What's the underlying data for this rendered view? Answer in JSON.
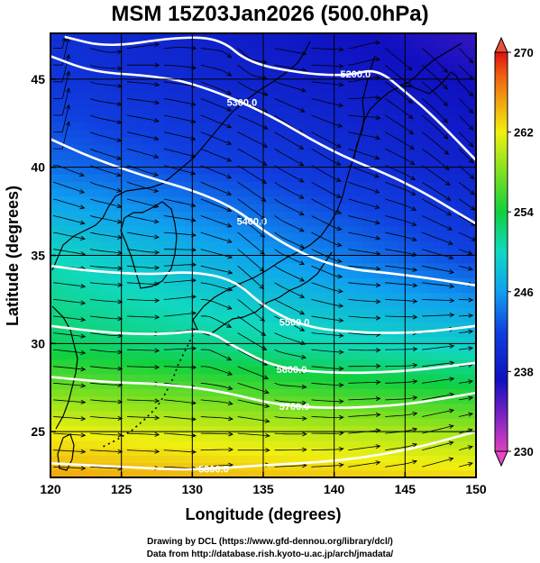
{
  "title": "MSM 15Z03Jan2026 (500.0hPa)",
  "chart_data": {
    "type": "heatmap",
    "title": "MSM 15Z03Jan2026 (500.0hPa)",
    "xlabel": "Longitude (degrees)",
    "ylabel": "Latitude  (degrees)",
    "xlim": [
      120,
      150
    ],
    "ylim": [
      22.4,
      47.6
    ],
    "x_ticks": [
      120,
      125,
      130,
      135,
      140,
      145,
      150
    ],
    "y_ticks": [
      25,
      30,
      35,
      40,
      45
    ],
    "grid": true,
    "colorbar": {
      "min": 230,
      "max": 270,
      "ticks": [
        230,
        238,
        246,
        254,
        262,
        270
      ],
      "colors": [
        "#e040c0",
        "#7020c0",
        "#1010c0",
        "#1040e0",
        "#10a0f0",
        "#10d8c0",
        "#10d040",
        "#80e020",
        "#f0f010",
        "#f0a010",
        "#f06010",
        "#e01010"
      ]
    },
    "temperature_field": [
      {
        "lat": 47.6,
        "west": 240.5,
        "east": 236.0
      },
      {
        "lat": 45,
        "west": 241,
        "east": 237
      },
      {
        "lat": 40,
        "west": 244,
        "east": 239
      },
      {
        "lat": 35,
        "west": 250,
        "east": 242
      },
      {
        "lat": 30,
        "west": 253,
        "east": 249
      },
      {
        "lat": 25,
        "west": 262,
        "east": 259
      },
      {
        "lat": 22.4,
        "west": 265,
        "east": 263
      }
    ],
    "height_contours": [
      {
        "label": "5200.0",
        "points": [
          [
            121,
            47.4
          ],
          [
            124,
            46.8
          ],
          [
            129,
            47.4
          ],
          [
            132,
            47.3
          ],
          [
            134,
            45.9
          ],
          [
            138,
            45.3
          ],
          [
            141,
            45.2
          ],
          [
            143,
            45.6
          ],
          [
            145,
            44.3
          ],
          [
            147,
            42.9
          ],
          [
            150,
            40.4
          ]
        ]
      },
      {
        "label": "5300.0",
        "points": [
          [
            120,
            46.3
          ],
          [
            123,
            45.4
          ],
          [
            127,
            45.2
          ],
          [
            130,
            44.8
          ],
          [
            135,
            43.2
          ],
          [
            140,
            40.8
          ],
          [
            145,
            39.2
          ],
          [
            150,
            36.8
          ]
        ]
      },
      {
        "label": "5400.0",
        "points": [
          [
            120,
            41.6
          ],
          [
            123,
            40.5
          ],
          [
            127,
            39.4
          ],
          [
            130,
            38.7
          ],
          [
            133,
            37.7
          ],
          [
            136,
            35.8
          ],
          [
            140,
            34.3
          ],
          [
            145,
            33.9
          ],
          [
            150,
            33.3
          ]
        ]
      },
      {
        "label": "5500.0",
        "points": [
          [
            120,
            34.4
          ],
          [
            123,
            34.1
          ],
          [
            127,
            33.9
          ],
          [
            130,
            34.1
          ],
          [
            133,
            33.6
          ],
          [
            135,
            32.1
          ],
          [
            138,
            30.9
          ],
          [
            142,
            30.6
          ],
          [
            146,
            30.6
          ],
          [
            150,
            31.0
          ]
        ]
      },
      {
        "label": "5600.0",
        "points": [
          [
            120,
            31.0
          ],
          [
            124,
            30.6
          ],
          [
            128,
            30.5
          ],
          [
            131,
            30.8
          ],
          [
            133,
            29.8
          ],
          [
            136,
            28.6
          ],
          [
            140,
            28.3
          ],
          [
            145,
            28.4
          ],
          [
            150,
            28.9
          ]
        ]
      },
      {
        "label": "5700.0",
        "points": [
          [
            120,
            28.1
          ],
          [
            124,
            27.8
          ],
          [
            128,
            27.7
          ],
          [
            132,
            27.3
          ],
          [
            136,
            26.5
          ],
          [
            140,
            26.3
          ],
          [
            145,
            26.5
          ],
          [
            150,
            27.2
          ]
        ]
      },
      {
        "label": "5800.0",
        "points": [
          [
            120,
            23.2
          ],
          [
            125,
            23.0
          ],
          [
            130,
            22.8
          ],
          [
            135,
            23.1
          ],
          [
            140,
            23.3
          ],
          [
            145,
            23.9
          ],
          [
            150,
            25.0
          ]
        ]
      }
    ]
  },
  "credits": {
    "line1": "Drawing by DCL (https://www.gfd-dennou.org/library/dcl/)",
    "line2": "Data from http://database.rish.kyoto-u.ac.jp/arch/jmadata/"
  }
}
